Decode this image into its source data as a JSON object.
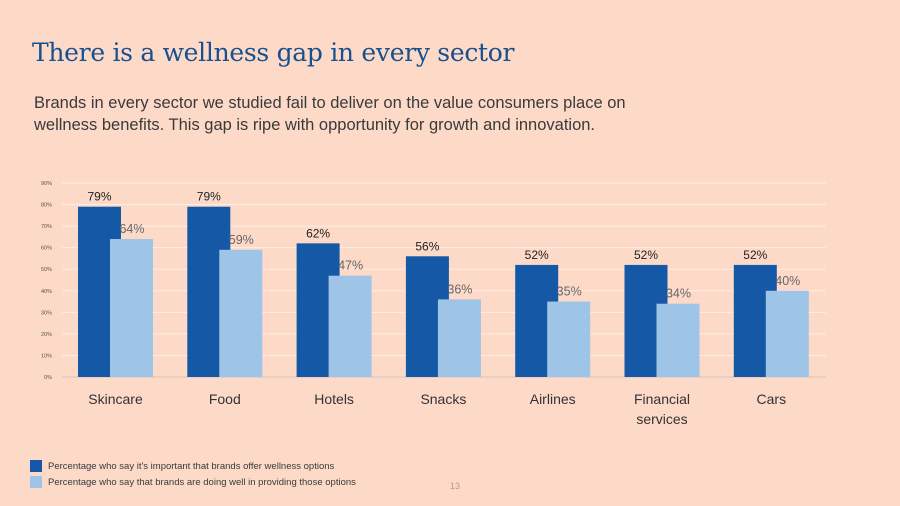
{
  "header": {
    "title": "There is a wellness gap in every sector",
    "subtitle": "Brands in every sector we studied fail to deliver on the value consumers place on wellness benefits. This gap is ripe with opportunity for growth and innovation."
  },
  "colors": {
    "background": "#fdd9c8",
    "series_important": "#1558a5",
    "series_doing_well": "#9ec4e8",
    "gridline": "#fdeee6",
    "title": "#16508f"
  },
  "chart_data": {
    "type": "bar",
    "title": "There is a wellness gap in every sector",
    "xlabel": "",
    "ylabel": "",
    "ylim": [
      0,
      90
    ],
    "yticks": [
      "0%",
      "10%",
      "20%",
      "30%",
      "40%",
      "50%",
      "60%",
      "70%",
      "80%",
      "90%"
    ],
    "grid": true,
    "legend_position": "bottom-left",
    "categories": [
      "Skincare",
      "Food",
      "Hotels",
      "Snacks",
      "Airlines",
      "Financial services",
      "Cars"
    ],
    "category_lines": [
      [
        "Skincare"
      ],
      [
        "Food"
      ],
      [
        "Hotels"
      ],
      [
        "Snacks"
      ],
      [
        "Airlines"
      ],
      [
        "Financial",
        "services"
      ],
      [
        "Cars"
      ]
    ],
    "series": [
      {
        "name": "Percentage who say it's important that brands offer wellness options",
        "values": [
          79,
          79,
          62,
          56,
          52,
          52,
          52
        ],
        "labels": [
          "79%",
          "79%",
          "62%",
          "56%",
          "52%",
          "52%",
          "52%"
        ]
      },
      {
        "name": "Percentage who say that brands are doing well in providing those options",
        "values": [
          64,
          59,
          47,
          36,
          35,
          34,
          40
        ],
        "labels": [
          "64%",
          "59%",
          "47%",
          "36%",
          "35%",
          "34%",
          "40%"
        ]
      }
    ]
  },
  "legend": {
    "items": [
      "Percentage who say it's important that brands offer wellness options",
      "Percentage who say that brands are doing well in providing those options"
    ]
  },
  "footer": {
    "page_number": "13"
  }
}
